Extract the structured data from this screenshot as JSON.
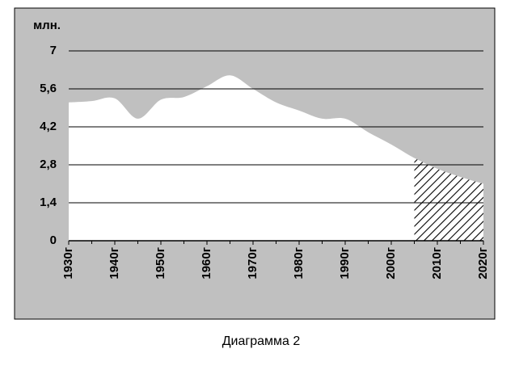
{
  "chart_data": {
    "type": "area",
    "y_label": "млн.",
    "caption": "Диаграмма 2",
    "x": [
      1930,
      1935,
      1940,
      1945,
      1950,
      1955,
      1960,
      1965,
      1970,
      1975,
      1980,
      1985,
      1990,
      1995,
      2000,
      2005,
      2010,
      2015,
      2020
    ],
    "values": [
      5.1,
      5.15,
      5.25,
      4.5,
      5.2,
      5.3,
      5.7,
      6.1,
      5.6,
      5.1,
      4.8,
      4.5,
      4.5,
      4.0,
      3.55,
      3.05,
      2.65,
      2.35,
      2.1
    ],
    "forecast_from": 2005,
    "color": "#ffffff",
    "background": "#c0c0c0",
    "grid": true,
    "xlim": [
      1930,
      2020
    ],
    "xticks": [
      {
        "value": 1930,
        "label": "1930г"
      },
      {
        "value": 1940,
        "label": "1940г"
      },
      {
        "value": 1950,
        "label": "1950г"
      },
      {
        "value": 1960,
        "label": "1960г"
      },
      {
        "value": 1970,
        "label": "1970г"
      },
      {
        "value": 1980,
        "label": "1980г"
      },
      {
        "value": 1990,
        "label": "1990г"
      },
      {
        "value": 2000,
        "label": "2000г"
      },
      {
        "value": 2010,
        "label": "2010г"
      },
      {
        "value": 2020,
        "label": "2020г"
      }
    ],
    "ylim": [
      0,
      7
    ],
    "yticks": [
      0,
      {
        "value": 1.4,
        "label": "1,4"
      },
      {
        "value": 2.8,
        "label": "2,8"
      },
      {
        "value": 4.2,
        "label": "4,2"
      },
      {
        "value": 5.6,
        "label": "5,6"
      },
      7
    ]
  }
}
